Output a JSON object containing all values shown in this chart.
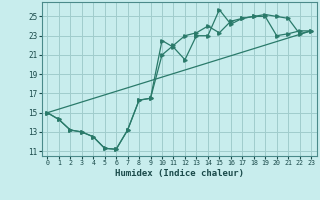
{
  "xlabel": "Humidex (Indice chaleur)",
  "bg_color": "#c8eded",
  "grid_color": "#a0cccc",
  "line_color": "#2a7a6a",
  "xlim": [
    -0.5,
    23.5
  ],
  "ylim": [
    10.5,
    26.5
  ],
  "xticks": [
    0,
    1,
    2,
    3,
    4,
    5,
    6,
    7,
    8,
    9,
    10,
    11,
    12,
    13,
    14,
    15,
    16,
    17,
    18,
    19,
    20,
    21,
    22,
    23
  ],
  "yticks": [
    11,
    13,
    15,
    17,
    19,
    21,
    23,
    25
  ],
  "line1_x": [
    0,
    1,
    2,
    3,
    4,
    5,
    6,
    7,
    8,
    9,
    10,
    11,
    12,
    13,
    14,
    15,
    16,
    17,
    18,
    19,
    20,
    21,
    22,
    23
  ],
  "line1_y": [
    15.0,
    14.3,
    13.2,
    13.0,
    12.5,
    11.3,
    11.2,
    13.2,
    16.3,
    16.5,
    22.5,
    21.8,
    20.5,
    23.0,
    23.0,
    25.7,
    24.2,
    24.8,
    25.0,
    25.2,
    25.0,
    24.8,
    23.2,
    23.5
  ],
  "line2_x": [
    0,
    1,
    2,
    3,
    4,
    5,
    6,
    7,
    8,
    9,
    10,
    11,
    12,
    13,
    14,
    15,
    16,
    17,
    18,
    19,
    20,
    21,
    22,
    23
  ],
  "line2_y": [
    15.0,
    14.3,
    13.2,
    13.0,
    12.5,
    11.3,
    11.2,
    13.2,
    16.3,
    16.5,
    21.0,
    22.0,
    23.0,
    23.3,
    24.0,
    23.3,
    24.5,
    24.8,
    25.0,
    25.0,
    23.0,
    23.2,
    23.5,
    23.5
  ],
  "line3_x": [
    0,
    23
  ],
  "line3_y": [
    15.0,
    23.5
  ]
}
